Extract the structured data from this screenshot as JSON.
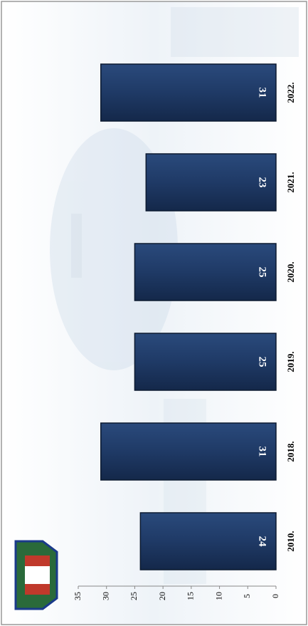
{
  "chart_data": {
    "type": "bar",
    "orientation": "horizontal-rotated",
    "categories": [
      "2010.",
      "2018.",
      "2019.",
      "2020.",
      "2021.",
      "2022."
    ],
    "values": [
      24,
      31,
      25,
      25,
      23,
      31
    ],
    "color": "#1f3a66",
    "ylim": [
      0,
      35
    ],
    "yticks": [
      0,
      5,
      10,
      15,
      20,
      25,
      30,
      35
    ],
    "grid": false
  }
}
